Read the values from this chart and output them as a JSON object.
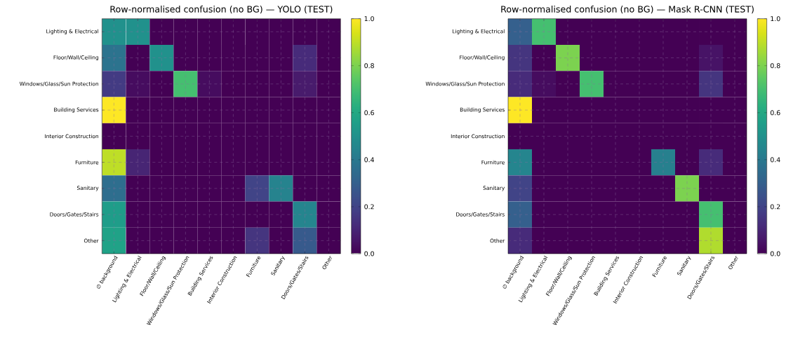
{
  "chart_data": [
    {
      "type": "heatmap",
      "title": "Row-normalised confusion (no BG) — YOLO (TEST)",
      "categories": [
        "∅ background",
        "Lighting & Electrical",
        "Floor/Wall/Ceiling",
        "Windows/Glass/Sun Protection",
        "Building Services",
        "Interior Construction",
        "Furniture",
        "Sanitary",
        "Doors/Gates/Stairs",
        "Other"
      ],
      "y_categories": [
        "Lighting & Electrical",
        "Floor/Wall/Ceiling",
        "Windows/Glass/Sun Protection",
        "Building Services",
        "Interior Construction",
        "Furniture",
        "Sanitary",
        "Doors/Gates/Stairs",
        "Other"
      ],
      "cells": [
        [
          0.5,
          0.5,
          0,
          0,
          0,
          0,
          0,
          0,
          0,
          0
        ],
        [
          0.38,
          0,
          0.5,
          0,
          0,
          0,
          0,
          0,
          0.12,
          0
        ],
        [
          0.17,
          0.03,
          0,
          0.7,
          0.03,
          0,
          0,
          0,
          0.07,
          0
        ],
        [
          1.0,
          0,
          0,
          0,
          0,
          0,
          0,
          0,
          0,
          0
        ],
        [
          0,
          0,
          0,
          0,
          0,
          0,
          0,
          0,
          0,
          0
        ],
        [
          0.9,
          0.1,
          0,
          0,
          0,
          0,
          0,
          0,
          0,
          0
        ],
        [
          0.36,
          0,
          0,
          0,
          0,
          0,
          0.2,
          0.44,
          0,
          0
        ],
        [
          0.55,
          0,
          0,
          0,
          0,
          0,
          0,
          0,
          0.45,
          0
        ],
        [
          0.57,
          0,
          0,
          0,
          0,
          0,
          0.15,
          0,
          0.28,
          0
        ]
      ],
      "clim": [
        0,
        1
      ],
      "cticks": [
        {
          "value": 0,
          "label": "0.0"
        },
        {
          "value": 0.2,
          "label": "0.2"
        },
        {
          "value": 0.4,
          "label": "0.4"
        },
        {
          "value": 0.6,
          "label": "0.6"
        },
        {
          "value": 0.8,
          "label": "0.8"
        },
        {
          "value": 1,
          "label": "1.0"
        }
      ],
      "grid": true
    },
    {
      "type": "heatmap",
      "title": "Row-normalised confusion (no BG) — Mask R-CNN (TEST)",
      "categories": [
        "∅ background",
        "Lighting & Electrical",
        "Floor/Wall/Ceiling",
        "Windows/Glass/Sun Protection",
        "Building Services",
        "Interior Construction",
        "Furniture",
        "Sanitary",
        "Doors/Gates/Stairs",
        "Other"
      ],
      "y_categories": [
        "Lighting & Electrical",
        "Floor/Wall/Ceiling",
        "Windows/Glass/Sun Protection",
        "Building Services",
        "Interior Construction",
        "Furniture",
        "Sanitary",
        "Doors/Gates/Stairs",
        "Other"
      ],
      "cells": [
        [
          0.3,
          0.7,
          0,
          0,
          0,
          0,
          0,
          0,
          0,
          0
        ],
        [
          0.15,
          0,
          0.8,
          0,
          0,
          0,
          0,
          0,
          0.05,
          0
        ],
        [
          0.12,
          0.03,
          0,
          0.7,
          0,
          0,
          0,
          0,
          0.15,
          0
        ],
        [
          1.0,
          0,
          0,
          0,
          0,
          0,
          0,
          0,
          0,
          0
        ],
        [
          0,
          0,
          0,
          0,
          0,
          0,
          0,
          0,
          0,
          0
        ],
        [
          0.45,
          0,
          0,
          0,
          0,
          0,
          0.43,
          0,
          0.12,
          0
        ],
        [
          0.2,
          0,
          0,
          0,
          0,
          0,
          0,
          0.8,
          0,
          0
        ],
        [
          0.3,
          0,
          0,
          0,
          0,
          0,
          0,
          0,
          0.7,
          0
        ],
        [
          0.12,
          0,
          0,
          0,
          0,
          0,
          0,
          0,
          0.88,
          0
        ]
      ],
      "clim": [
        0,
        1
      ],
      "cticks": [
        {
          "value": 0,
          "label": "0.0"
        },
        {
          "value": 0.2,
          "label": "0.2"
        },
        {
          "value": 0.4,
          "label": "0.4"
        },
        {
          "value": 0.6,
          "label": "0.6"
        },
        {
          "value": 0.8,
          "label": "0.8"
        },
        {
          "value": 1,
          "label": "1.0"
        }
      ],
      "grid": true
    }
  ]
}
